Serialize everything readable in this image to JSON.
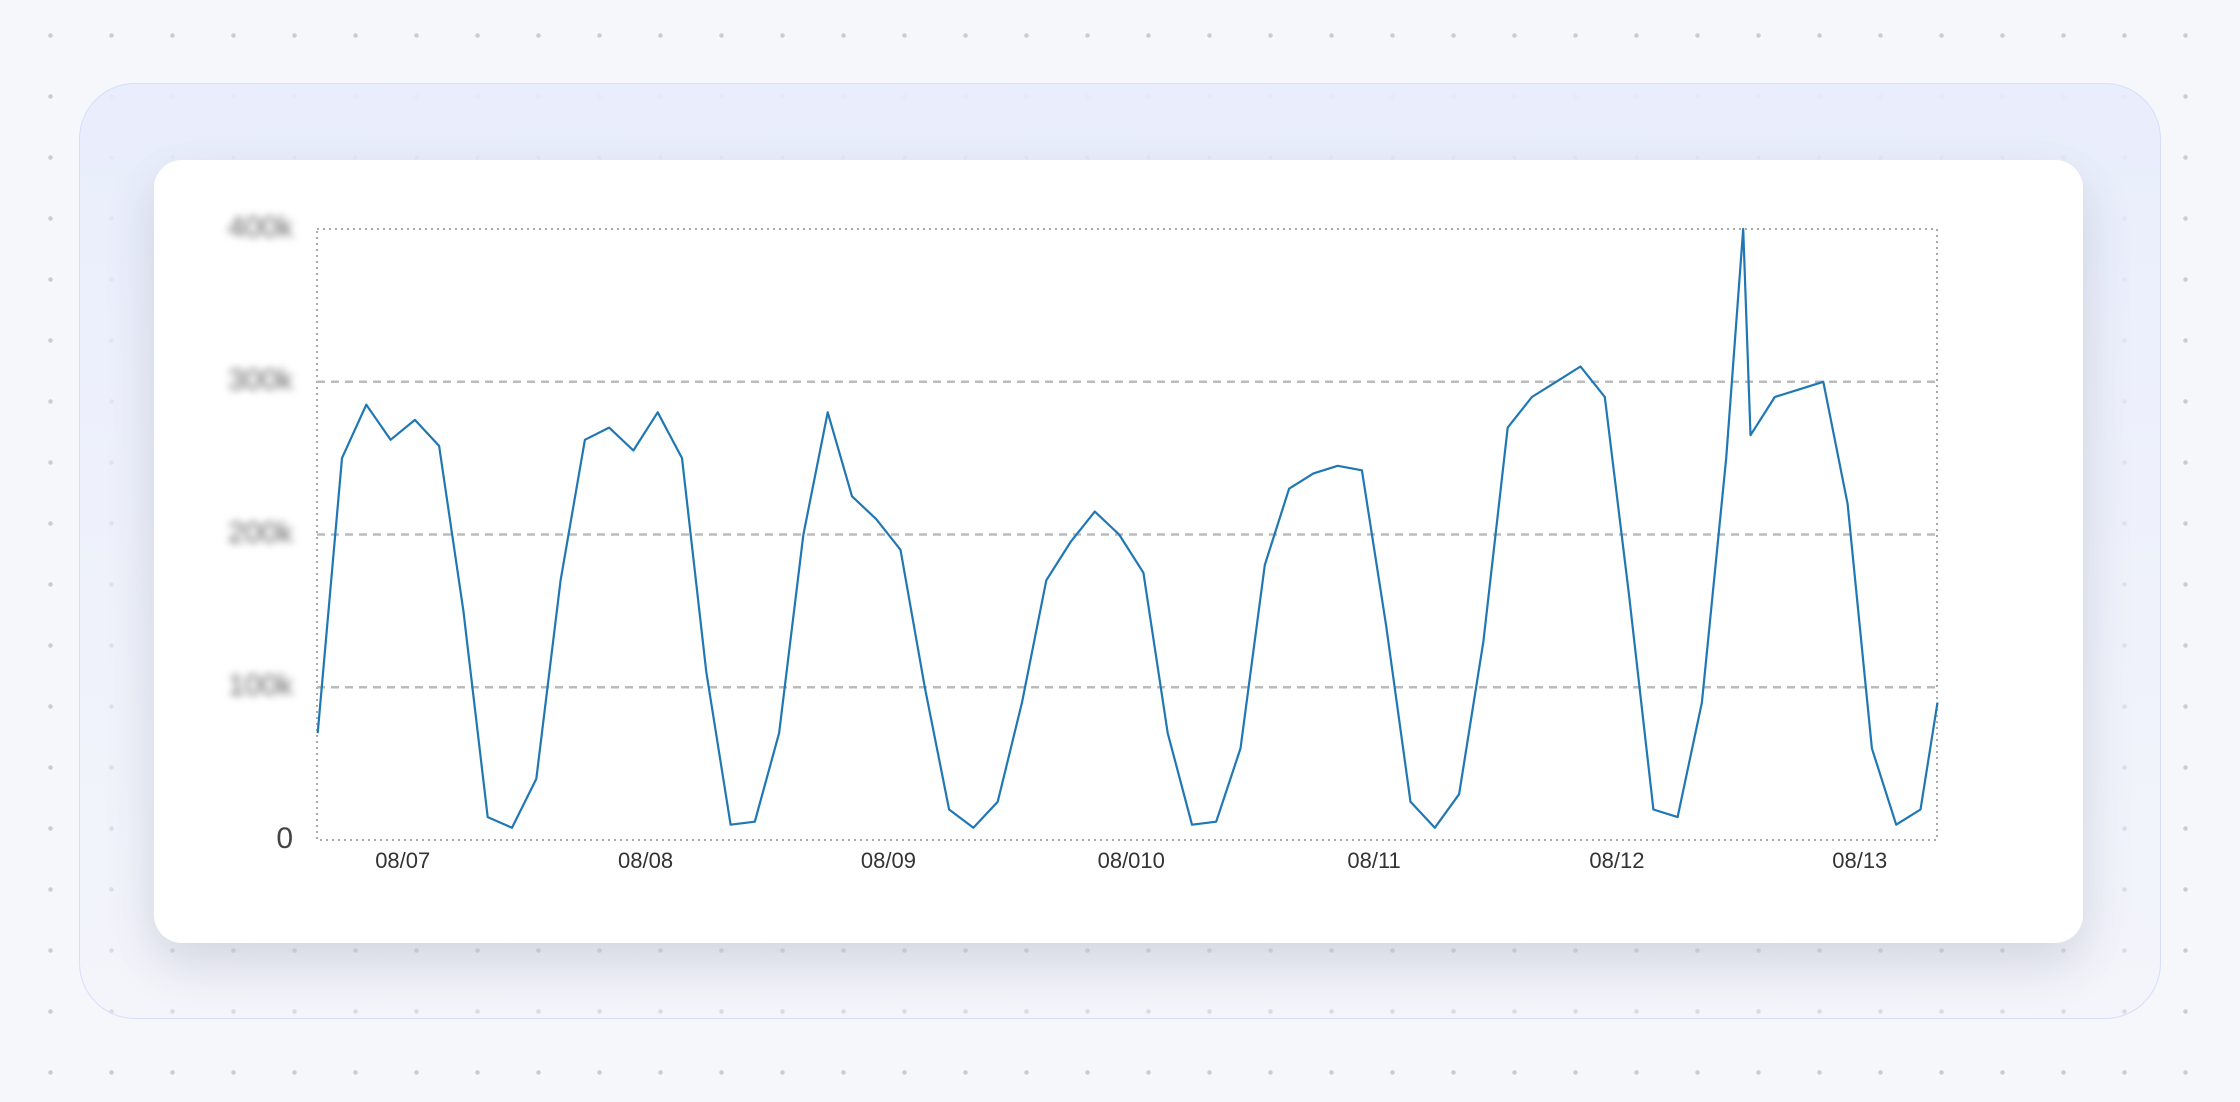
{
  "chart_data": {
    "type": "line",
    "x": [
      -0.35,
      -0.25,
      -0.15,
      -0.05,
      0.05,
      0.15,
      0.25,
      0.35,
      0.45,
      0.55,
      0.65,
      0.75,
      0.85,
      0.95,
      1.05,
      1.15,
      1.25,
      1.35,
      1.45,
      1.55,
      1.65,
      1.75,
      1.85,
      1.95,
      2.05,
      2.15,
      2.25,
      2.35,
      2.45,
      2.55,
      2.65,
      2.75,
      2.85,
      2.95,
      3.05,
      3.15,
      3.25,
      3.35,
      3.45,
      3.55,
      3.65,
      3.75,
      3.85,
      3.95,
      4.05,
      4.15,
      4.25,
      4.35,
      4.45,
      4.55,
      4.65,
      4.75,
      4.85,
      4.95,
      5.05,
      5.15,
      5.25,
      5.35,
      5.45,
      5.52,
      5.55,
      5.65,
      5.75,
      5.85,
      5.95,
      6.05,
      6.15,
      6.25,
      6.32
    ],
    "series": [
      {
        "color": "#1f77b4",
        "values": [
          70000,
          250000,
          285000,
          262000,
          275000,
          258000,
          150000,
          15000,
          8000,
          40000,
          170000,
          262000,
          270000,
          255000,
          280000,
          250000,
          110000,
          10000,
          12000,
          70000,
          200000,
          280000,
          225000,
          210000,
          190000,
          100000,
          20000,
          8000,
          25000,
          90000,
          170000,
          195000,
          215000,
          200000,
          175000,
          70000,
          10000,
          12000,
          60000,
          180000,
          230000,
          240000,
          245000,
          242000,
          140000,
          25000,
          8000,
          30000,
          130000,
          270000,
          290000,
          300000,
          310000,
          290000,
          160000,
          20000,
          15000,
          90000,
          250000,
          400000,
          265000,
          290000,
          295000,
          300000,
          220000,
          60000,
          10000,
          20000,
          90000
        ]
      }
    ],
    "xlim": [
      -0.353,
      6.318
    ],
    "xticks": [
      {
        "value": 0,
        "label": "08/07"
      },
      {
        "value": 1,
        "label": "08/08"
      },
      {
        "value": 2,
        "label": "08/09"
      },
      {
        "value": 3,
        "label": "08/010"
      },
      {
        "value": 4,
        "label": "08/11"
      },
      {
        "value": 5,
        "label": "08/12"
      },
      {
        "value": 6,
        "label": "08/13"
      }
    ],
    "ylim": [
      0,
      400000
    ],
    "yticks": [
      0,
      {
        "value": 100000,
        "label": "100k"
      },
      {
        "value": 200000,
        "label": "200k"
      },
      {
        "value": 300000,
        "label": "300k"
      },
      {
        "value": 400000,
        "label": "400k"
      }
    ],
    "grid": true
  }
}
